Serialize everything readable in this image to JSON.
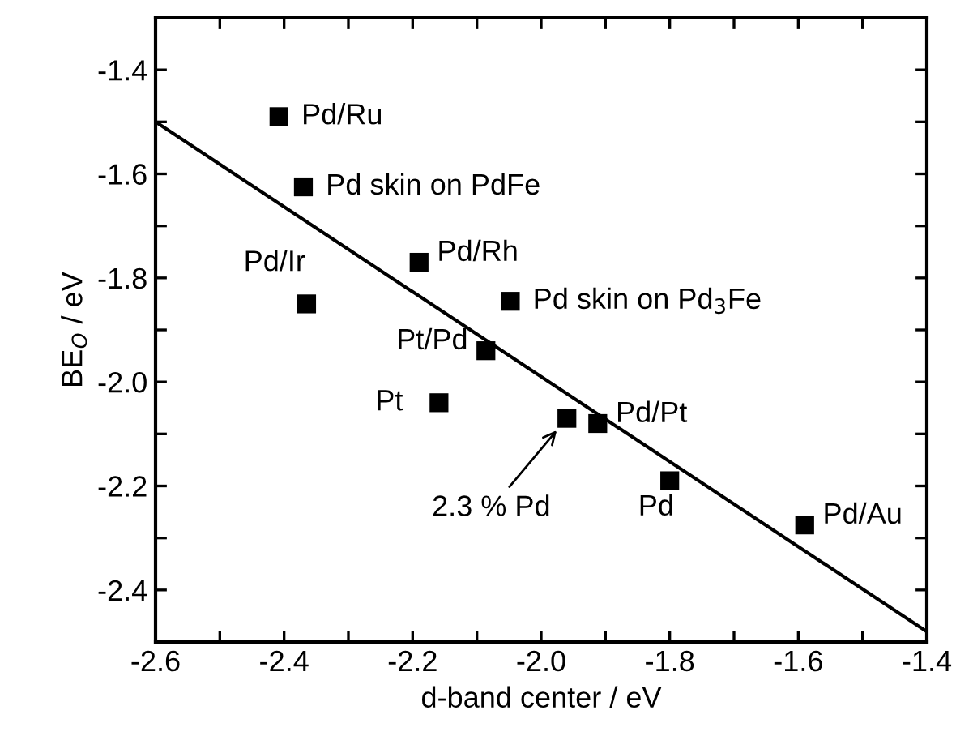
{
  "chart_data": {
    "type": "scatter",
    "xlabel": "d-band center / eV",
    "ylabel": "BE$_{O}$ / eV",
    "xlim": [
      -2.6,
      -1.4
    ],
    "ylim": [
      -2.5,
      -1.3
    ],
    "xticks": [
      -2.6,
      {
        "value": -2.5,
        "label": null
      },
      -2.4,
      {
        "value": -2.3,
        "label": null
      },
      -2.2,
      {
        "value": -2.1,
        "label": null
      },
      {
        "value": -2.0,
        "label": "-2.0"
      },
      {
        "value": -1.9,
        "label": null
      },
      -1.8,
      {
        "value": -1.7,
        "label": null
      },
      -1.6,
      {
        "value": -1.5,
        "label": null
      },
      -1.4
    ],
    "yticks": [
      {
        "value": -2.5,
        "label": null
      },
      -2.4,
      {
        "value": -2.3,
        "label": null
      },
      -2.2,
      {
        "value": -2.1,
        "label": null
      },
      {
        "value": -2.0,
        "label": "-2.0"
      },
      {
        "value": -1.9,
        "label": null
      },
      -1.8,
      {
        "value": -1.7,
        "label": null
      },
      -1.6,
      {
        "value": -1.5,
        "label": null
      },
      -1.4,
      {
        "value": -1.3,
        "label": null
      }
    ],
    "grid": false,
    "legend": false,
    "series": [
      {
        "marker": "square",
        "color": "#000000",
        "x": [
          -2.408,
          -2.37,
          -2.365,
          -2.19,
          -2.048,
          -2.086,
          -2.159,
          -1.96,
          -1.912,
          -1.8,
          -1.59
        ],
        "values": [
          -1.49,
          -1.625,
          -1.85,
          -1.77,
          -1.845,
          -1.94,
          -2.04,
          -2.07,
          -2.08,
          -2.19,
          -2.275
        ]
      },
      {
        "type": "line",
        "line_style": "solid",
        "marker": "none",
        "color": "#000000",
        "x": [
          -2.6,
          -1.4
        ],
        "values": [
          -1.5,
          -2.48
        ]
      }
    ],
    "annotations": [
      {
        "text": "Pd/Ru",
        "x": -2.408,
        "y": -1.49
      },
      {
        "text": "Pd skin on PdFe",
        "x": -2.37,
        "y": -1.625
      },
      {
        "text": "Pd/Ir",
        "x": -2.365,
        "y": -1.85
      },
      {
        "text": "Pd/Rh",
        "x": -2.19,
        "y": -1.77
      },
      {
        "text": "Pd skin on Pd$_{3}$Fe",
        "x": -2.048,
        "y": -1.845
      },
      {
        "text": "Pt/Pd",
        "x": -2.086,
        "y": -1.94
      },
      {
        "text": "Pt",
        "x": -2.159,
        "y": -2.04
      },
      {
        "text": "2.3 % Pd",
        "x": -1.96,
        "y": -2.07
      },
      {
        "text": "Pd/Pt",
        "x": -1.912,
        "y": -2.08
      },
      {
        "text": "Pd",
        "x": -1.8,
        "y": -2.19
      },
      {
        "text": "Pd/Au",
        "x": -1.59,
        "y": -2.275
      }
    ]
  }
}
